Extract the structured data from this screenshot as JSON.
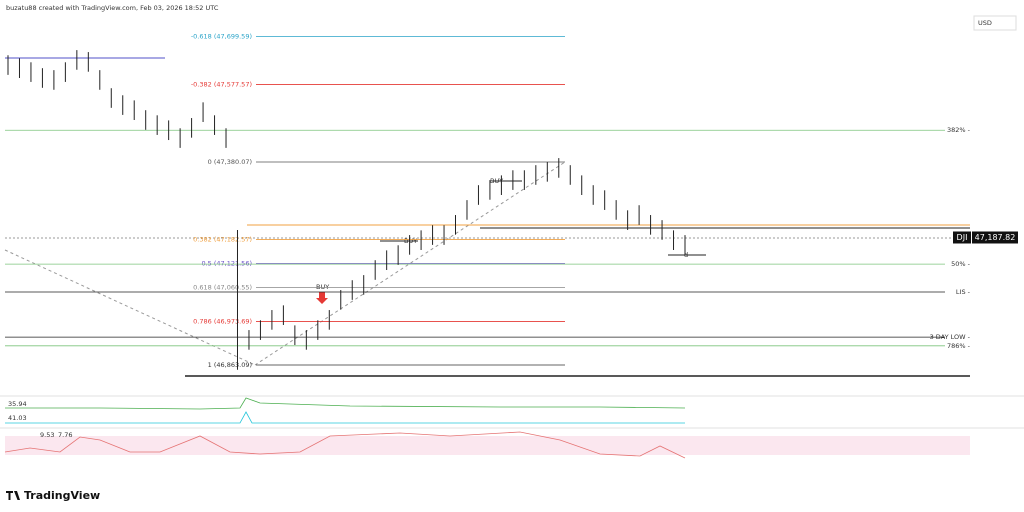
{
  "header": {
    "credit": "buzatu88 created with TradingView.com, Feb 03, 2026 18:52 UTC",
    "currency": "USD"
  },
  "chart_data": {
    "type": "ohlc",
    "symbol": "DJI",
    "last_price": {
      "value": 47187.82,
      "label": "47,187.82"
    },
    "high": [
      47652,
      47644,
      47634,
      47619,
      47614,
      47634,
      47665,
      47660,
      47614,
      47568,
      47550,
      47537,
      47512,
      47499,
      47486,
      47466,
      47492,
      47532,
      47499,
      47466,
      47207,
      46952,
      46977,
      47003,
      47015,
      46964,
      46952,
      46977,
      47003,
      47054,
      47079,
      47092,
      47130,
      47155,
      47168,
      47194,
      47206,
      47219,
      47219,
      47245,
      47283,
      47321,
      47334,
      47346,
      47359,
      47359,
      47372,
      47380,
      47390,
      47372,
      47346,
      47321,
      47308,
      47283,
      47257,
      47270,
      47245,
      47232,
      47206,
      47194
    ],
    "low": [
      47602,
      47594,
      47584,
      47569,
      47564,
      47584,
      47615,
      47610,
      47564,
      47518,
      47500,
      47487,
      47462,
      47449,
      47436,
      47416,
      47442,
      47482,
      47449,
      47416,
      46851,
      46902,
      46927,
      46953,
      46965,
      46914,
      46902,
      46927,
      46953,
      47004,
      47029,
      47042,
      47080,
      47105,
      47118,
      47144,
      47156,
      47169,
      47169,
      47195,
      47233,
      47271,
      47284,
      47296,
      47309,
      47309,
      47322,
      47330,
      47340,
      47322,
      47296,
      47271,
      47258,
      47233,
      47207,
      47220,
      47195,
      47182,
      47156,
      47144
    ],
    "fib_levels": [
      {
        "value": 47699.59,
        "label": "-0.618 (47,699.59)",
        "color": "#29a3c8"
      },
      {
        "value": 47577.57,
        "label": "-0.382 (47,577.57)",
        "color": "#e53935"
      },
      {
        "value": 47380.07,
        "label": "0 (47,380.07)",
        "color": "#555555"
      },
      {
        "value": 47182.57,
        "label": "0.382 (47,182.57)",
        "color": "#f0a040"
      },
      {
        "value": 47121.56,
        "label": "0.5 (47,121.56)",
        "color": "#6a4fc8"
      },
      {
        "value": 47060.55,
        "label": "0.618 (47,060.55)",
        "color": "#888888"
      },
      {
        "value": 46973.69,
        "label": "0.786 (46,973.69)",
        "color": "#e53935"
      },
      {
        "value": 46863.09,
        "label": "1 (46,863.09)",
        "color": "#333333"
      }
    ],
    "levels": [
      {
        "value": 47461,
        "label": "382% -",
        "color": "#7cc47c"
      },
      {
        "value": 47120,
        "label": "50% -",
        "color": "#7cc47c"
      },
      {
        "value": 47049,
        "label": "LIS -",
        "color": "#222222"
      },
      {
        "value": 46934,
        "label": "3 DAY LOW -",
        "color": "#222222"
      },
      {
        "value": 46912,
        "label": "786% -",
        "color": "#7cc47c"
      }
    ],
    "annotations": [
      "BUY",
      "BUY",
      "BUY",
      "d"
    ],
    "indicators": [
      {
        "label": "35.94",
        "color": "#4caf50"
      },
      {
        "label": "41.03",
        "color": "#26c6da"
      },
      {
        "label": "9.53",
        "color": "#555555"
      },
      {
        "label": "7.76",
        "color": "#e53935"
      }
    ],
    "logo": "TradingView"
  }
}
